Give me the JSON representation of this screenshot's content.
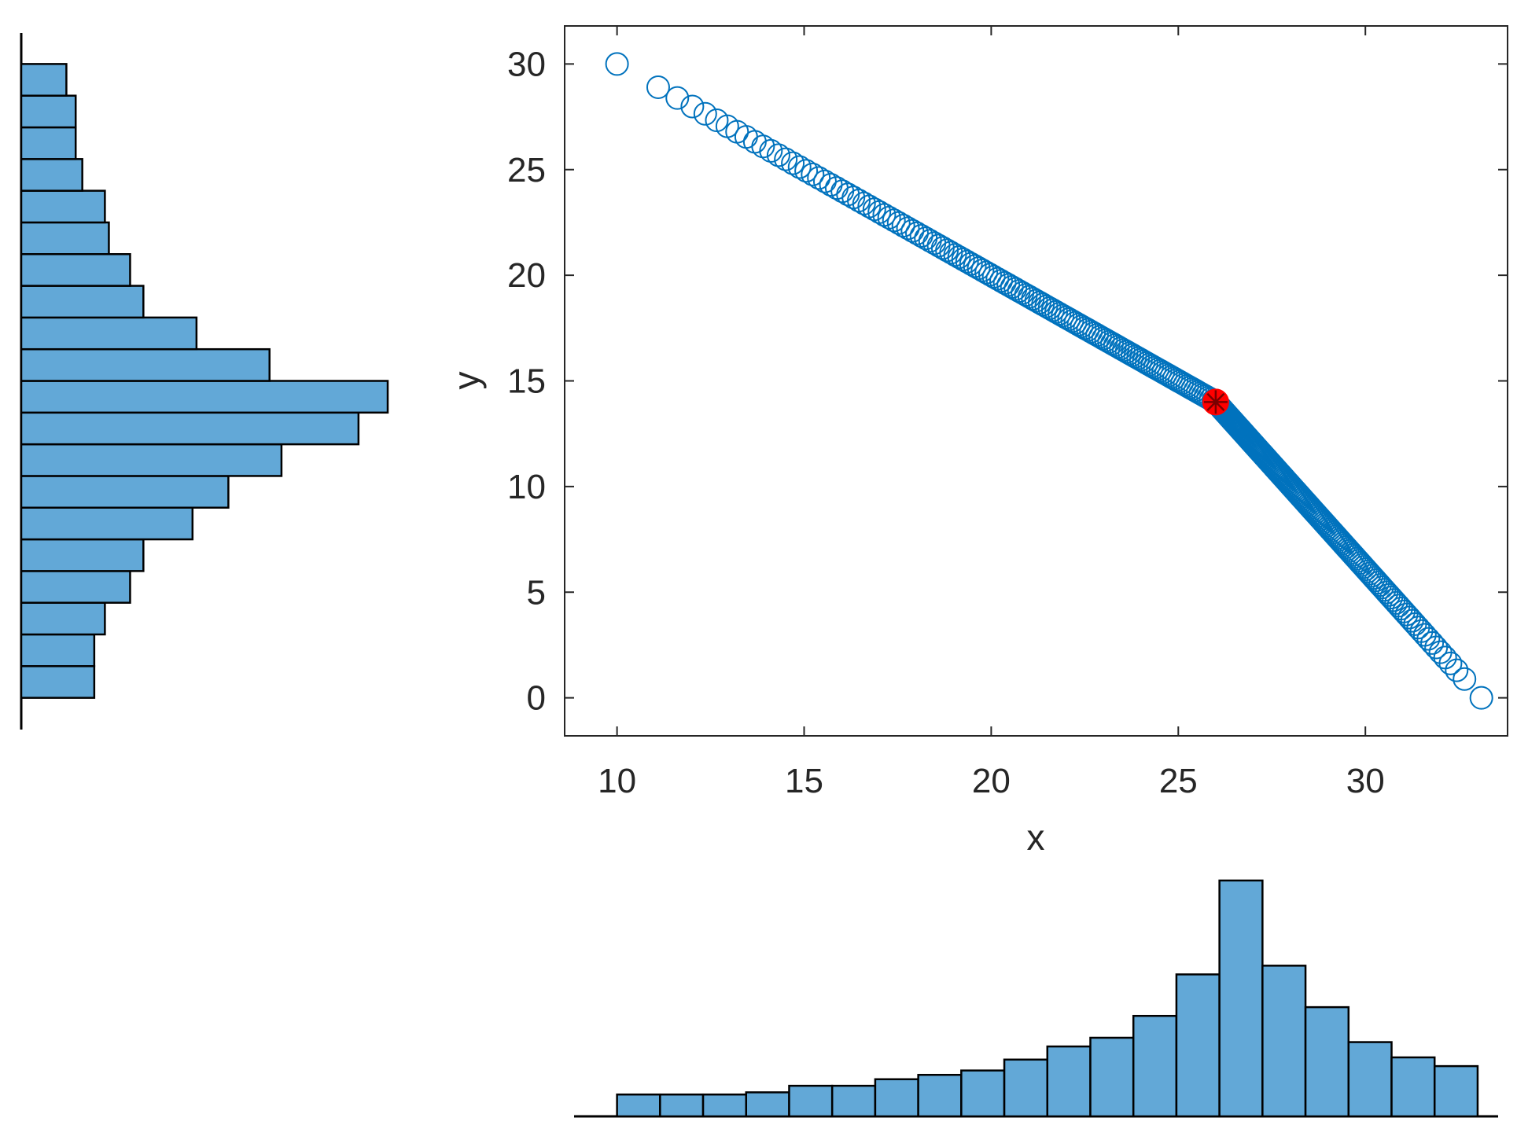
{
  "chart_data": [
    {
      "type": "scatter",
      "title": "",
      "xlabel": "x",
      "ylabel": "y",
      "xlim": [
        8.6,
        33.8
      ],
      "ylim": [
        -1.8,
        31.8
      ],
      "xticks": [
        10,
        15,
        20,
        25,
        30
      ],
      "yticks": [
        0,
        5,
        10,
        15,
        20,
        25,
        30
      ],
      "grid": false,
      "series": [
        {
          "marker": "circle-open",
          "color": "#0072BD",
          "segments": [
            {
              "x_start": 10,
              "y_start": 30,
              "x_end": 26,
              "y_end": 14
            },
            {
              "x_start": 26,
              "y_start": 14,
              "x_end": 33.1,
              "y_end": 0
            }
          ]
        },
        {
          "marker": "asterisk-filled-circle",
          "color": "#FF0000",
          "x": [
            26
          ],
          "y": [
            14
          ]
        }
      ]
    },
    {
      "type": "bar",
      "orientation": "horizontal",
      "axis_shared_with": "y",
      "bin_edges": [
        0,
        1.5,
        3,
        4.5,
        6,
        7.5,
        9,
        10.5,
        12,
        13.5,
        15,
        16.5,
        18,
        19.5,
        21,
        22.5,
        24,
        25.5,
        27,
        28.5,
        30
      ],
      "values": [
        5.5,
        5.5,
        6.3,
        8.2,
        9.2,
        12.9,
        15.6,
        19.6,
        25.4,
        27.6,
        18.7,
        13.2,
        9.2,
        8.2,
        6.6,
        6.3,
        4.6,
        4.1,
        4.1,
        3.4
      ],
      "color": "#62A8D7",
      "edgecolor": "#000000"
    },
    {
      "type": "bar",
      "orientation": "vertical",
      "axis_shared_with": "x",
      "bin_edges": [
        10,
        11.15,
        12.3,
        13.45,
        14.6,
        15.75,
        16.9,
        18.05,
        19.2,
        20.35,
        21.5,
        22.65,
        23.8,
        24.95,
        26.1,
        27.25,
        28.4,
        29.55,
        30.7,
        31.85,
        33
      ],
      "values": [
        1.0,
        1.0,
        1.0,
        1.1,
        1.4,
        1.4,
        1.7,
        1.9,
        2.1,
        2.6,
        3.2,
        3.6,
        4.6,
        6.5,
        10.8,
        6.9,
        5.0,
        3.4,
        2.7,
        2.3
      ],
      "color": "#62A8D7",
      "edgecolor": "#000000"
    }
  ]
}
